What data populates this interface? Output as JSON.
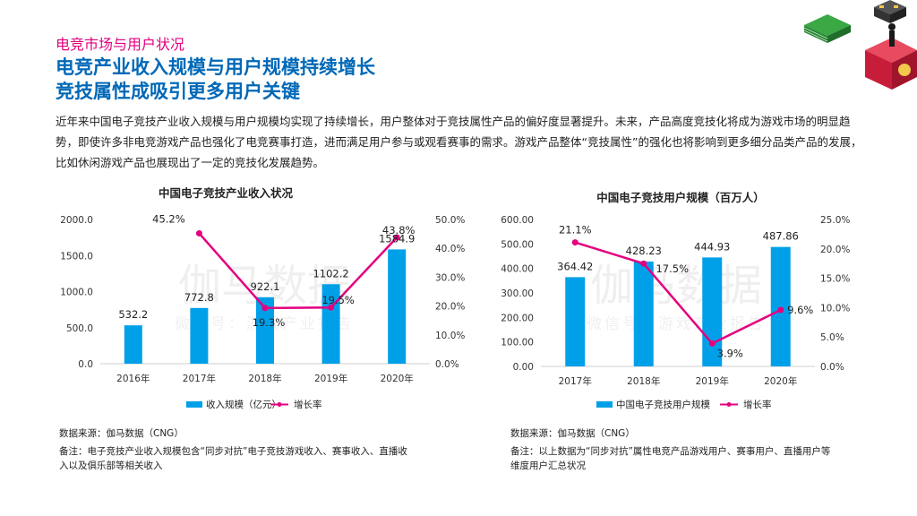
{
  "header": {
    "section": "电竞市场与用户状况",
    "headline": [
      "电竞产业收入规模与用户规模持续增长",
      "竞技属性成吸引更多用户关键"
    ]
  },
  "intro": "近年来中国电子竞技产业收入规模与用户规模均实现了持续增长，用户整体对于竞技属性产品的偏好度显著提升。未来，产品高度竞技化将成为游戏市场的明显趋势，即使许多非电竞游戏产品也强化了电竞赛事打造，进而满足用户参与或观看赛事的需求。游戏产品整体“竞技属性”的强化也将影响到更多细分品类产品的发展，比如休闲游戏产品也展现出了一定的竞技化发展趋势。",
  "watermark": {
    "line1": "伽马数据",
    "line2": "微信号：游戏产业报告"
  },
  "colors": {
    "bar": "#00a0e9",
    "line": "#e4007f",
    "section": "#e4007f",
    "headline": "#0068b7"
  },
  "chart_data": [
    {
      "type": "bar",
      "title": "中国电子竞技产业收入状况",
      "categories": [
        "2016年",
        "2017年",
        "2018年",
        "2019年",
        "2020年"
      ],
      "series": [
        {
          "name": "收入规模（亿元）",
          "kind": "bar",
          "axis": "left",
          "values": [
            532.2,
            772.8,
            922.1,
            1102.2,
            1584.9
          ],
          "labels": [
            "532.2",
            "772.8",
            "922.1",
            "1102.2",
            "1584.9"
          ]
        },
        {
          "name": "增长率",
          "kind": "line",
          "axis": "right",
          "values": [
            null,
            45.2,
            19.3,
            19.5,
            43.8
          ],
          "labels": [
            "",
            "45.2%",
            "19.3%",
            "19.5%",
            "43.8%"
          ]
        }
      ],
      "ylim": [
        0,
        2000
      ],
      "yticks": [
        "0.0",
        "500.0",
        "1000.0",
        "1500.0",
        "2000.0"
      ],
      "y2lim": [
        0,
        50
      ],
      "y2ticks": [
        "0.0%",
        "10.0%",
        "20.0%",
        "30.0%",
        "40.0%",
        "50.0%"
      ]
    },
    {
      "type": "bar",
      "title": "中国电子竞技用户规模（百万人）",
      "categories": [
        "2017年",
        "2018年",
        "2019年",
        "2020年"
      ],
      "series": [
        {
          "name": "中国电子竞技用户规模",
          "kind": "bar",
          "axis": "left",
          "values": [
            364.42,
            428.23,
            444.93,
            487.86
          ],
          "labels": [
            "364.42",
            "428.23",
            "444.93",
            "487.86"
          ]
        },
        {
          "name": "增长率",
          "kind": "line",
          "axis": "right",
          "values": [
            21.1,
            17.5,
            3.9,
            9.6
          ],
          "labels": [
            "21.1%",
            "17.5%",
            "3.9%",
            "9.6%"
          ]
        }
      ],
      "ylim": [
        0,
        600
      ],
      "yticks": [
        "0.00",
        "100.00",
        "200.00",
        "300.00",
        "400.00",
        "500.00",
        "600.00"
      ],
      "y2lim": [
        0,
        25
      ],
      "y2ticks": [
        "0.0%",
        "5.0%",
        "10.0%",
        "15.0%",
        "20.0%",
        "25.0%"
      ]
    }
  ],
  "notes": [
    {
      "source": "数据来源：伽马数据（CNG）",
      "remark": [
        "备注：电子竞技产业收入规模包含“同步对抗”电子竞技游戏收入、赛事收入、直播收",
        "入以及俱乐部等相关收入"
      ]
    },
    {
      "source": "数据来源：伽马数据（CNG）",
      "remark": [
        "备注：以上数据为“同步对抗”属性电竞产品游戏用户、赛事用户、直播用户等",
        "维度用户汇总状况"
      ]
    }
  ]
}
